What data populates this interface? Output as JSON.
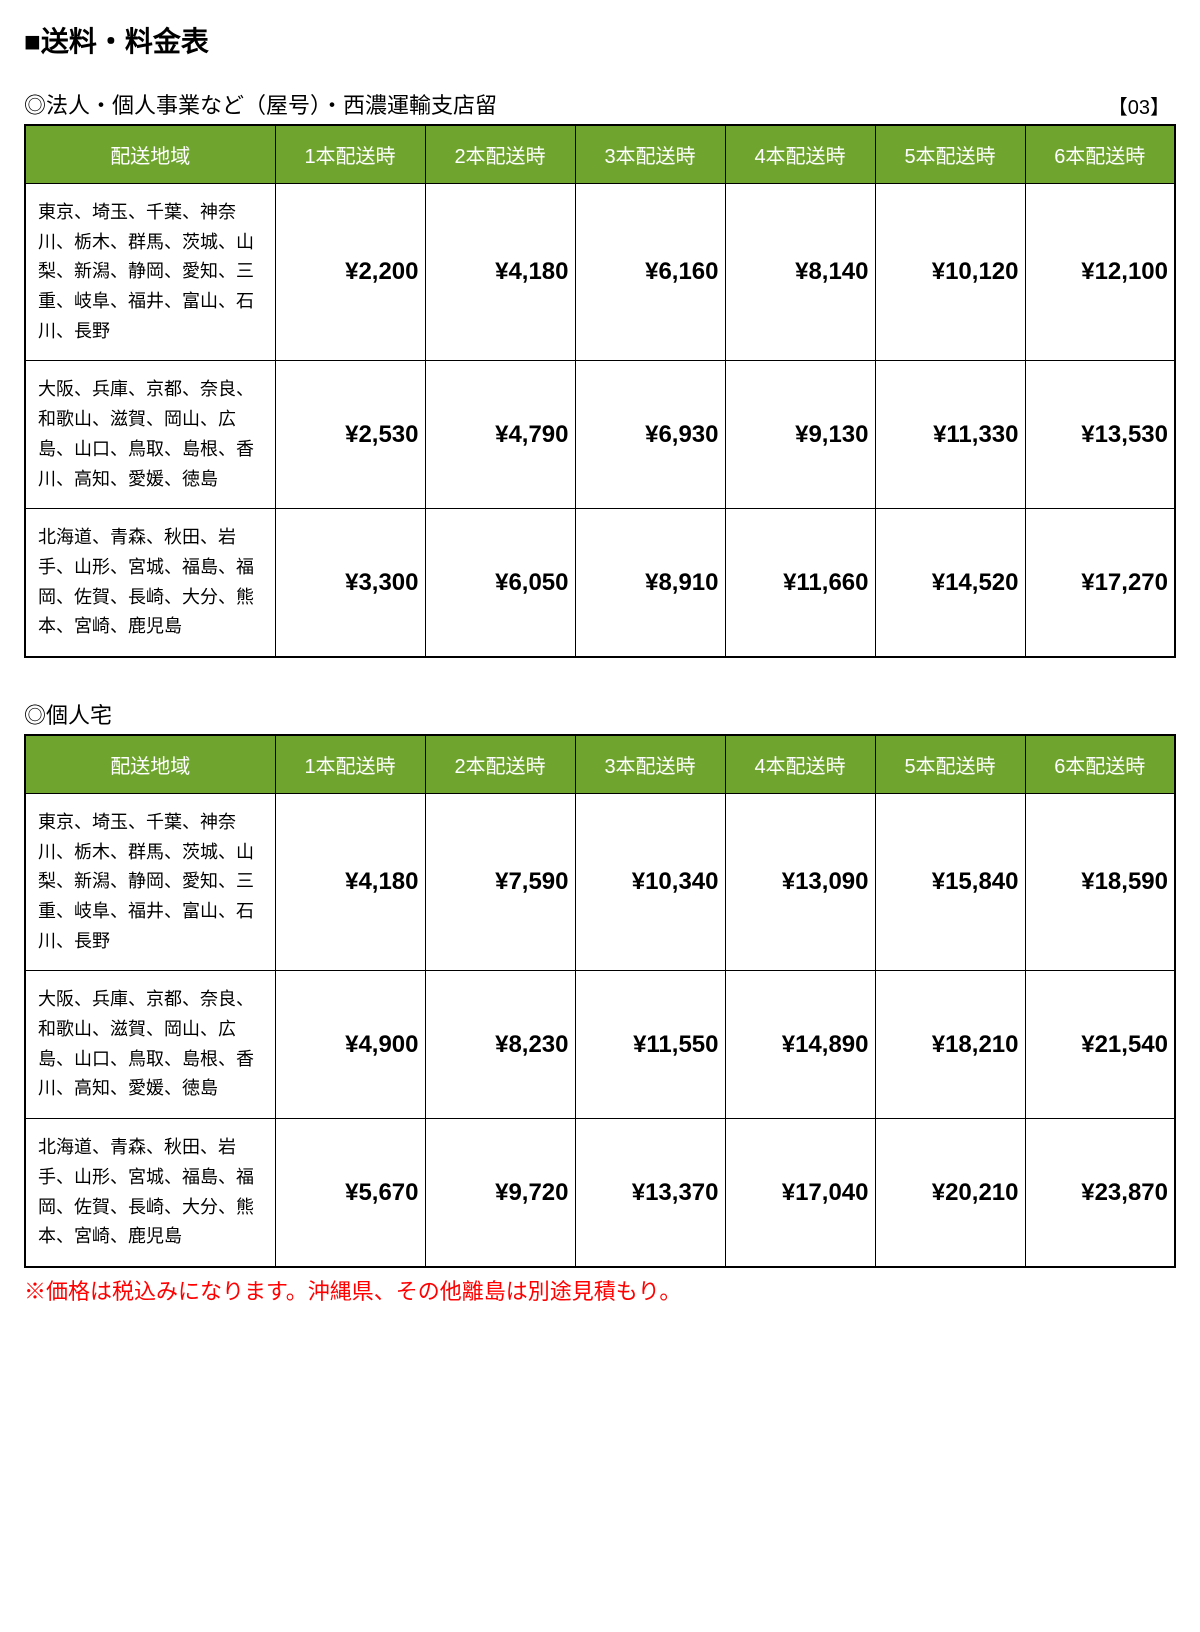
{
  "page_title": "■送料・料金表",
  "tag": "【03】",
  "header_bg_color": "#6fa52f",
  "header_text_color": "#ffffff",
  "border_color": "#000000",
  "footnote": "※価格は税込みになります。沖縄県、その他離島は別途見積もり。",
  "footnote_color": "#ff0000",
  "columns": [
    "配送地域",
    "1本配送時",
    "2本配送時",
    "3本配送時",
    "4本配送時",
    "5本配送時",
    "6本配送時"
  ],
  "tables": [
    {
      "title": "◎法人・個人事業など（屋号）・西濃運輸支店留",
      "rows": [
        {
          "region": "東京、埼玉、千葉、神奈川、栃木、群馬、茨城、山梨、新潟、静岡、愛知、三重、岐阜、福井、富山、石川、長野",
          "prices": [
            "¥2,200",
            "¥4,180",
            "¥6,160",
            "¥8,140",
            "¥10,120",
            "¥12,100"
          ]
        },
        {
          "region": "大阪、兵庫、京都、奈良、和歌山、滋賀、岡山、広島、山口、鳥取、島根、香川、高知、愛媛、徳島",
          "prices": [
            "¥2,530",
            "¥4,790",
            "¥6,930",
            "¥9,130",
            "¥11,330",
            "¥13,530"
          ]
        },
        {
          "region": "北海道、青森、秋田、岩手、山形、宮城、福島、福岡、佐賀、長崎、大分、熊本、宮崎、鹿児島",
          "prices": [
            "¥3,300",
            "¥6,050",
            "¥8,910",
            "¥11,660",
            "¥14,520",
            "¥17,270"
          ]
        }
      ]
    },
    {
      "title": "◎個人宅",
      "rows": [
        {
          "region": "東京、埼玉、千葉、神奈川、栃木、群馬、茨城、山梨、新潟、静岡、愛知、三重、岐阜、福井、富山、石川、長野",
          "prices": [
            "¥4,180",
            "¥7,590",
            "¥10,340",
            "¥13,090",
            "¥15,840",
            "¥18,590"
          ]
        },
        {
          "region": "大阪、兵庫、京都、奈良、和歌山、滋賀、岡山、広島、山口、鳥取、島根、香川、高知、愛媛、徳島",
          "prices": [
            "¥4,900",
            "¥8,230",
            "¥11,550",
            "¥14,890",
            "¥18,210",
            "¥21,540"
          ]
        },
        {
          "region": "北海道、青森、秋田、岩手、山形、宮城、福島、福岡、佐賀、長崎、大分、熊本、宮崎、鹿児島",
          "prices": [
            "¥5,670",
            "¥9,720",
            "¥13,370",
            "¥17,040",
            "¥20,210",
            "¥23,870"
          ]
        }
      ]
    }
  ]
}
